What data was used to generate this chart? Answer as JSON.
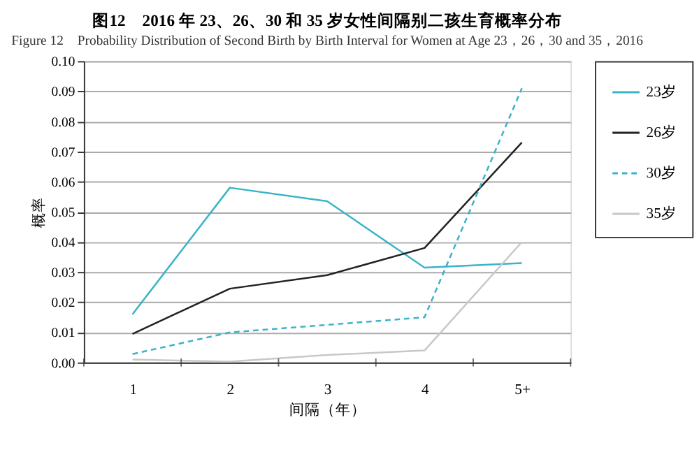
{
  "chart_data": {
    "type": "line",
    "title": "图12　2016 年 23、26、30 和 35 岁女性间隔别二孩生育概率分布",
    "subtitle": "Figure 12　Probability Distribution of Second Birth by Birth Interval for Women at Age 23，26，30 and 35，2016",
    "xlabel": "间隔（年）",
    "ylabel": "概率",
    "categories": [
      "1",
      "2",
      "3",
      "4",
      "5+"
    ],
    "ylim": [
      0,
      0.1
    ],
    "yticks": [
      {
        "value": 0,
        "label": "0.00"
      },
      {
        "value": 0.01,
        "label": "0.01"
      },
      {
        "value": 0.02,
        "label": "0.02"
      },
      {
        "value": 0.03,
        "label": "0.03"
      },
      {
        "value": 0.04,
        "label": "0.04"
      },
      {
        "value": 0.05,
        "label": "0.05"
      },
      {
        "value": 0.06,
        "label": "0.06"
      },
      {
        "value": 0.07,
        "label": "0.07"
      },
      {
        "value": 0.08,
        "label": "0.08"
      },
      {
        "value": 0.09,
        "label": "0.09"
      },
      {
        "value": 0.1,
        "label": "0.10"
      }
    ],
    "grid": "y",
    "legend": "right",
    "marker": "none",
    "series": [
      {
        "name": "23岁",
        "color": "#3bb3c9",
        "line_style": "solid",
        "values": [
          0.016,
          0.058,
          0.0535,
          0.0315,
          0.033
        ]
      },
      {
        "name": "26岁",
        "color": "#222222",
        "line_style": "solid",
        "values": [
          0.0095,
          0.0245,
          0.029,
          0.038,
          0.073
        ]
      },
      {
        "name": "30岁",
        "color": "#3bb3c9",
        "line_style": "dashed",
        "values": [
          0.0028,
          0.01,
          0.0125,
          0.015,
          0.091
        ]
      },
      {
        "name": "35岁",
        "color": "#c8c8c8",
        "line_style": "solid",
        "values": [
          0.001,
          0.0003,
          0.0025,
          0.004,
          0.04
        ]
      }
    ]
  }
}
